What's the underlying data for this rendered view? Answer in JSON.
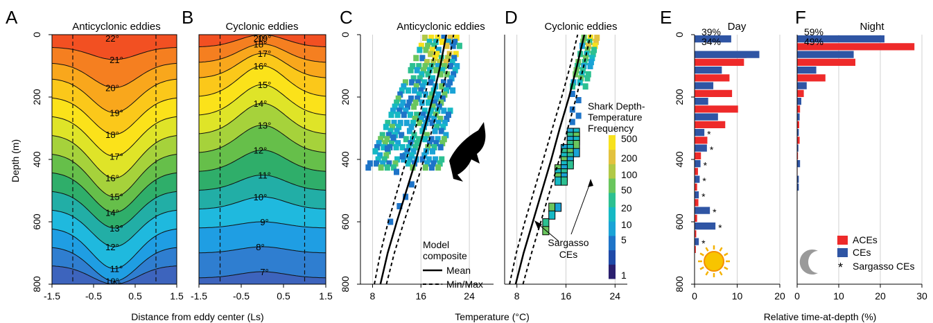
{
  "colors": {
    "ace": "#ee2a2a",
    "ce": "#2f55a4",
    "contour_bands": [
      "#ee2424",
      "#f25022",
      "#f57f20",
      "#f9a71c",
      "#fbc81a",
      "#fbe21a",
      "#dfe428",
      "#a6d23b",
      "#66bf4a",
      "#2fae6a",
      "#22aea6",
      "#1fb9de",
      "#1f9ee3",
      "#2f7ed0",
      "#3d64bd",
      "#4f56ad",
      "#5d4ea3",
      "#6a4aa0"
    ],
    "heat": [
      "#2a1f6e",
      "#1f4aa8",
      "#1e74c8",
      "#1aa3d6",
      "#16b9c4",
      "#2cc091",
      "#6ac65e",
      "#b1c946",
      "#e2c23f",
      "#f7e11d"
    ]
  },
  "chart_data": [
    {
      "panel": "A",
      "type": "heatmap",
      "title": "Anticyclonic eddies",
      "xlabel": "",
      "ylabel": "Depth (m)",
      "xlim": [
        -1.5,
        1.5
      ],
      "ylim": [
        800,
        0
      ],
      "xticks": [
        "-1.5",
        "-0.5",
        "0.5",
        "1.5"
      ],
      "yticks": [
        "0",
        "200",
        "400",
        "600",
        "800"
      ],
      "isotherm_labels": [
        "22°",
        "21°",
        "20°",
        "19°",
        "18°",
        "17°",
        "16°",
        "15°",
        "14°",
        "13°",
        "12°",
        "11°",
        "10°",
        "9°"
      ],
      "isotherm_edge_depths": [
        0,
        40,
        90,
        140,
        200,
        260,
        320,
        380,
        440,
        500,
        560,
        620,
        680,
        740
      ],
      "isotherm_center_depths": [
        0,
        80,
        170,
        250,
        320,
        390,
        460,
        520,
        570,
        620,
        680,
        750,
        790,
        800
      ],
      "eddy_edges": [
        -1.0,
        1.0
      ]
    },
    {
      "panel": "B",
      "type": "heatmap",
      "title": "Cyclonic eddies",
      "xlabel": "",
      "ylabel": "",
      "xlim": [
        -1.5,
        1.5
      ],
      "ylim": [
        800,
        0
      ],
      "xticks": [
        "-1.5",
        "-0.5",
        "0.5",
        "1.5"
      ],
      "isotherm_labels": [
        "20°",
        "19°",
        "18°",
        "17°",
        "16°",
        "15°",
        "14°",
        "13°",
        "12°",
        "11°",
        "10°",
        "9°",
        "8°",
        "7°"
      ],
      "isotherm_edge_depths": [
        0,
        40,
        90,
        140,
        200,
        260,
        320,
        380,
        440,
        500,
        560,
        620,
        700,
        780
      ],
      "isotherm_center_depths": [
        -80,
        0,
        30,
        60,
        100,
        160,
        220,
        290,
        370,
        450,
        520,
        600,
        680,
        760
      ],
      "eddy_edges": [
        -1.0,
        1.0
      ]
    },
    {
      "panel": "C",
      "type": "heatmap",
      "title": "Anticyclonic eddies",
      "xlim": [
        6,
        28
      ],
      "ylim": [
        800,
        0
      ],
      "xticks": [
        "8",
        "16",
        "24"
      ],
      "yticks": [
        "0",
        "200",
        "400",
        "600",
        "800"
      ],
      "model_mean": [
        [
          9.3,
          800
        ],
        [
          10.5,
          700
        ],
        [
          12,
          600
        ],
        [
          13.6,
          500
        ],
        [
          15.2,
          400
        ],
        [
          16.6,
          300
        ],
        [
          18,
          200
        ],
        [
          19.2,
          100
        ],
        [
          20.2,
          0
        ]
      ],
      "model_min": [
        [
          8.3,
          800
        ],
        [
          9.3,
          700
        ],
        [
          10.6,
          600
        ],
        [
          12.1,
          500
        ],
        [
          13.6,
          400
        ],
        [
          15.1,
          300
        ],
        [
          16.6,
          200
        ],
        [
          17.8,
          100
        ],
        [
          18.9,
          0
        ]
      ],
      "model_max": [
        [
          10.3,
          800
        ],
        [
          11.6,
          700
        ],
        [
          13.2,
          600
        ],
        [
          14.9,
          500
        ],
        [
          16.5,
          400
        ],
        [
          17.9,
          300
        ],
        [
          19.3,
          200
        ],
        [
          20.5,
          100
        ],
        [
          21.4,
          0
        ]
      ],
      "legend": {
        "title": "Model composite",
        "mean": "Mean",
        "minmax": "Min/Max"
      }
    },
    {
      "panel": "D",
      "type": "heatmap",
      "title": "Cyclonic eddies",
      "xlim": [
        6,
        26
      ],
      "ylim": [
        800,
        0
      ],
      "xticks": [
        "8",
        "16",
        "24"
      ],
      "model_mean": [
        [
          7.8,
          800
        ],
        [
          9.1,
          700
        ],
        [
          10.6,
          600
        ],
        [
          12.1,
          500
        ],
        [
          13.6,
          400
        ],
        [
          15,
          300
        ],
        [
          16.5,
          200
        ],
        [
          17.8,
          100
        ],
        [
          19,
          0
        ]
      ],
      "model_min": [
        [
          6.8,
          800
        ],
        [
          7.9,
          700
        ],
        [
          9.3,
          600
        ],
        [
          10.8,
          500
        ],
        [
          12.3,
          400
        ],
        [
          13.8,
          300
        ],
        [
          15.3,
          200
        ],
        [
          16.7,
          100
        ],
        [
          17.9,
          0
        ]
      ],
      "model_max": [
        [
          9,
          800
        ],
        [
          10.4,
          700
        ],
        [
          11.9,
          600
        ],
        [
          13.4,
          500
        ],
        [
          14.9,
          400
        ],
        [
          16.3,
          300
        ],
        [
          17.7,
          200
        ],
        [
          18.9,
          100
        ],
        [
          20,
          0
        ]
      ],
      "annotation": "Sargasso CEs",
      "colorbar": {
        "title": "Shark Depth-Temperature Frequency",
        "ticks": [
          "500",
          "200",
          "100",
          "50",
          "20",
          "10",
          "5",
          "1"
        ]
      }
    },
    {
      "panel": "E",
      "type": "bar",
      "title": "Day",
      "ylim": [
        800,
        0
      ],
      "xlim": [
        0,
        20
      ],
      "xticks": [
        "0",
        "10",
        "20"
      ],
      "yticks": [
        "0",
        "200",
        "400",
        "600",
        "800"
      ],
      "pct_ce": "39%",
      "pct_ace": "34%",
      "depth_bins": [
        0,
        25,
        50,
        75,
        100,
        125,
        150,
        175,
        200,
        225,
        250,
        275,
        300,
        325,
        350,
        375,
        400,
        425,
        450,
        475,
        500,
        525,
        550,
        575,
        600,
        625,
        650,
        675
      ],
      "series": [
        {
          "name": "ACEs",
          "values": [
            0,
            0,
            12.2,
            11.6,
            0,
            8.2,
            0,
            8.8,
            0,
            10.2,
            0,
            7.2,
            0,
            3.0,
            0,
            1.5,
            0,
            0.8,
            0,
            0.6,
            0,
            0.9,
            0,
            0.6,
            0,
            0.4,
            0,
            0.3
          ]
        },
        {
          "name": "CEs",
          "values": [
            8.6,
            0,
            15.2,
            0,
            6.4,
            0,
            4.4,
            0,
            3.2,
            0,
            5.5,
            0,
            2.3,
            0,
            2.9,
            0,
            1.4,
            0,
            1.2,
            0,
            1.0,
            0,
            3.6,
            0,
            4.9,
            0,
            1.0,
            0
          ]
        }
      ],
      "sargasso_star_depths": [
        325,
        375,
        425,
        475,
        525,
        575,
        625,
        675
      ]
    },
    {
      "panel": "F",
      "type": "bar",
      "title": "Night",
      "ylim": [
        800,
        0
      ],
      "xlim": [
        0,
        30
      ],
      "xticks": [
        "0",
        "10",
        "20",
        "30"
      ],
      "pct_ce": "59%",
      "pct_ace": "49%",
      "depth_bins": [
        0,
        25,
        50,
        75,
        100,
        125,
        150,
        175,
        200,
        225,
        250,
        275,
        300,
        325,
        350,
        375,
        400,
        425,
        450,
        475
      ],
      "series": [
        {
          "name": "ACEs",
          "values": [
            0,
            28.2,
            0,
            14,
            0,
            6.8,
            0,
            1.6,
            0,
            0.7,
            0,
            0.5,
            0,
            0.6,
            0,
            0.2,
            0,
            0.1,
            0,
            0
          ]
        },
        {
          "name": "CEs",
          "values": [
            21,
            0,
            13.6,
            0,
            4.6,
            0,
            2.3,
            0,
            1.0,
            0,
            0.6,
            0,
            0.4,
            0,
            0.3,
            0,
            0.7,
            0,
            0.4,
            0.4
          ]
        }
      ],
      "legend": [
        "ACEs",
        "CEs",
        "Sargasso CEs"
      ]
    }
  ],
  "shared_labels": {
    "panel_letters": [
      "A",
      "B",
      "C",
      "D",
      "E",
      "F"
    ],
    "xlabel_ab": "Distance from eddy center (Ls)",
    "xlabel_cd": "Temperature (°C)",
    "xlabel_ef": "Relative time-at-depth (%)",
    "ylabel_a": "Depth (m)"
  }
}
